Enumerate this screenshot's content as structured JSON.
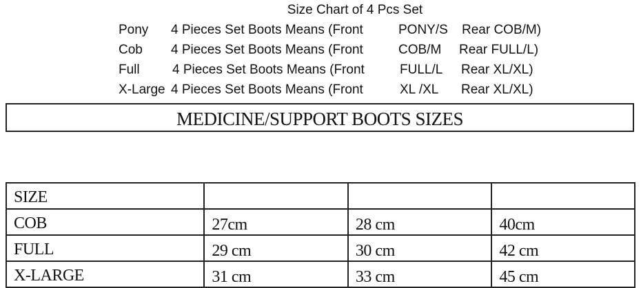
{
  "header": {
    "title": "Size Chart of 4 Pcs Set",
    "lines": [
      {
        "label": "Pony",
        "description": "4 Pieces Set Boots Means (Front",
        "front": "PONY/S",
        "rear": "Rear COB/M)"
      },
      {
        "label": "Cob",
        "description": "4 Pieces Set Boots Means (Front",
        "front": "COB/M",
        "rear": "Rear FULL/L)"
      },
      {
        "label": "Full",
        "description": "4 Pieces Set Boots Means (Front",
        "front": "FULL/L",
        "rear": "Rear XL/XL)"
      },
      {
        "label": "X-Large",
        "description": "4 Pieces Set Boots Means (Front",
        "front": "XL /XL",
        "rear": "Rear XL/XL)"
      }
    ]
  },
  "banner": {
    "text": "MEDICINE/SUPPORT BOOTS SIZES"
  },
  "table": {
    "header": [
      "SIZE",
      "",
      "",
      ""
    ],
    "rows": [
      [
        "COB",
        "27cm",
        "28 cm",
        "40cm"
      ],
      [
        "FULL",
        "29 cm",
        "30 cm",
        "42 cm"
      ],
      [
        "X-LARGE",
        "31 cm",
        "33 cm",
        "45 cm"
      ]
    ]
  }
}
